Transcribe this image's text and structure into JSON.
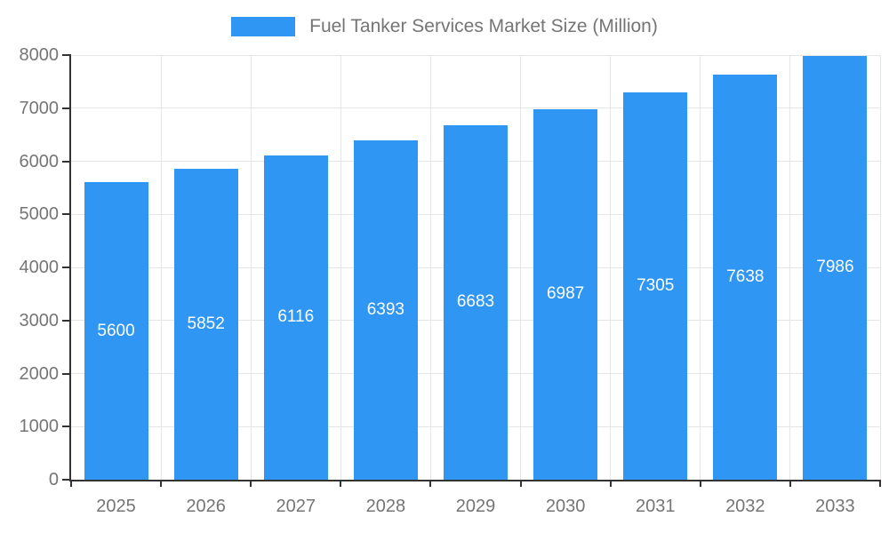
{
  "chart_data": {
    "type": "bar",
    "title": "Fuel Tanker Services Market Size (Million)",
    "categories": [
      "2025",
      "2026",
      "2027",
      "2028",
      "2029",
      "2030",
      "2031",
      "2032",
      "2033"
    ],
    "values": [
      5600,
      5852,
      6116,
      6393,
      6683,
      6987,
      7305,
      7638,
      7986
    ],
    "xlabel": "",
    "ylabel": "",
    "ylim": [
      0,
      8000
    ],
    "yticks": [
      0,
      1000,
      2000,
      3000,
      4000,
      5000,
      6000,
      7000,
      8000
    ],
    "grid": true,
    "legend_position": "top",
    "bar_color": "#2F96F3",
    "label_color": "#ffffff",
    "axis_text_color": "#757575",
    "grid_color": "#e6e6e6",
    "axis_line_color": "#333333"
  }
}
